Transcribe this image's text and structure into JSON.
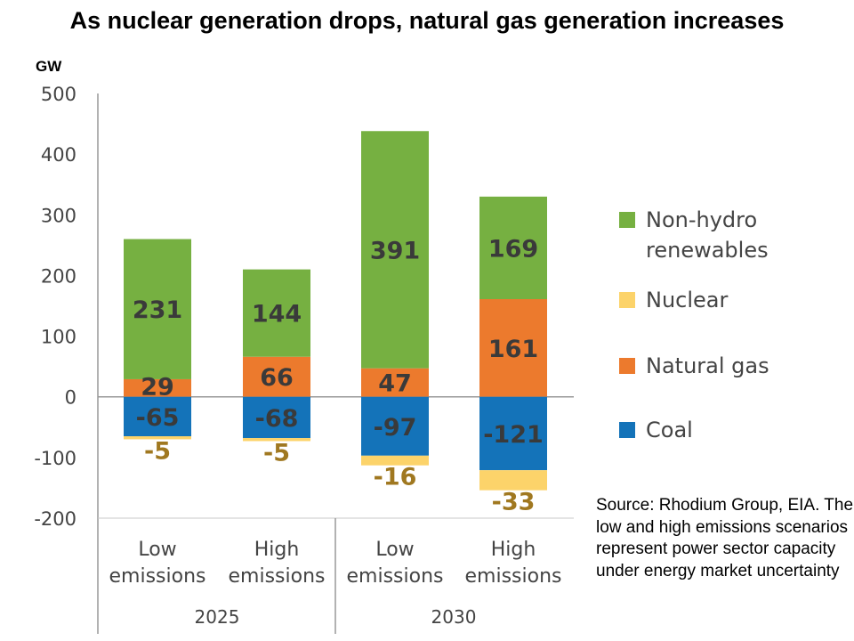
{
  "title": "As nuclear generation drops, natural gas generation increases",
  "source_note": "Source: Rhodium Group, EIA. The low and high emissions scenarios represent power sector capacity under energy market uncertainty",
  "colors": {
    "renewables": "#76b041",
    "nuclear": "#fcd36a",
    "natural_gas": "#ec7a2d",
    "coal": "#1473b9",
    "label_dark": "#3a3a3a",
    "label_nuclear": "#a07820",
    "axis": "#999999"
  },
  "legend": [
    {
      "key": "renewables",
      "label_line1": "Non-hydro",
      "label_line2": "renewables"
    },
    {
      "key": "nuclear",
      "label_line1": "Nuclear",
      "label_line2": ""
    },
    {
      "key": "natural_gas",
      "label_line1": "Natural gas",
      "label_line2": ""
    },
    {
      "key": "coal",
      "label_line1": "Coal",
      "label_line2": ""
    }
  ],
  "chart_data": {
    "type": "bar",
    "stacked": true,
    "ylabel": "GW",
    "ylim": [
      -200,
      500
    ],
    "yticks": [
      500,
      400,
      300,
      200,
      100,
      0,
      -100,
      -200
    ],
    "categories": [
      {
        "line1": "Low",
        "line2": "emissions",
        "group": "2025"
      },
      {
        "line1": "High",
        "line2": "emissions",
        "group": "2025"
      },
      {
        "line1": "Low",
        "line2": "emissions",
        "group": "2030"
      },
      {
        "line1": "High",
        "line2": "emissions",
        "group": "2030"
      }
    ],
    "groups": [
      "2025",
      "2030"
    ],
    "series": [
      {
        "key": "natural_gas",
        "name": "Natural gas",
        "values": [
          29,
          66,
          47,
          161
        ]
      },
      {
        "key": "renewables",
        "name": "Non-hydro renewables",
        "values": [
          231,
          144,
          391,
          169
        ]
      },
      {
        "key": "coal",
        "name": "Coal",
        "values": [
          -65,
          -68,
          -97,
          -121
        ]
      },
      {
        "key": "nuclear",
        "name": "Nuclear",
        "values": [
          -5,
          -5,
          -16,
          -33
        ]
      }
    ],
    "legend_position": "right",
    "grid": false
  }
}
